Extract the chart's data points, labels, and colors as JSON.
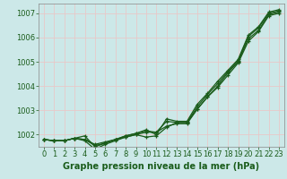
{
  "xlabel": "Graphe pression niveau de la mer (hPa)",
  "bg_color": "#cce8e8",
  "grid_color": "#e8c8c8",
  "line_color": "#1a5c1a",
  "xlim": [
    -0.5,
    23.5
  ],
  "ylim": [
    1001.5,
    1007.4
  ],
  "yticks": [
    1002,
    1003,
    1004,
    1005,
    1006,
    1007
  ],
  "xticks": [
    0,
    1,
    2,
    3,
    4,
    5,
    6,
    7,
    8,
    9,
    10,
    11,
    12,
    13,
    14,
    15,
    16,
    17,
    18,
    19,
    20,
    21,
    22,
    23
  ],
  "series": [
    [
      1001.8,
      1001.75,
      1001.75,
      1001.85,
      1001.8,
      1001.6,
      1001.7,
      1001.8,
      1001.9,
      1002.0,
      1002.1,
      1002.1,
      1002.35,
      1002.45,
      1002.45,
      1003.05,
      1003.55,
      1004.0,
      1004.55,
      1005.0,
      1005.95,
      1006.3,
      1006.95,
      1007.05
    ],
    [
      1001.8,
      1001.75,
      1001.75,
      1001.85,
      1001.8,
      1001.55,
      1001.65,
      1001.8,
      1001.95,
      1002.05,
      1002.15,
      1002.1,
      1002.55,
      1002.5,
      1002.5,
      1003.15,
      1003.65,
      1004.1,
      1004.6,
      1005.05,
      1006.05,
      1006.4,
      1007.0,
      1007.1
    ],
    [
      1001.8,
      1001.75,
      1001.75,
      1001.85,
      1001.95,
      1001.5,
      1001.65,
      1001.8,
      1001.95,
      1002.05,
      1002.2,
      1002.0,
      1002.65,
      1002.55,
      1002.55,
      1003.25,
      1003.7,
      1004.2,
      1004.65,
      1005.1,
      1006.1,
      1006.45,
      1007.05,
      1007.15
    ],
    [
      1001.8,
      1001.75,
      1001.75,
      1001.85,
      1001.75,
      1001.4,
      1001.6,
      1001.75,
      1001.9,
      1002.0,
      1001.9,
      1001.95,
      1002.3,
      1002.5,
      1002.5,
      1003.05,
      1003.55,
      1003.95,
      1004.45,
      1004.95,
      1005.85,
      1006.25,
      1006.9,
      1007.0
    ]
  ],
  "marker": "+",
  "markersize": 3.5,
  "linewidth": 0.9,
  "xlabel_fontsize": 7,
  "tick_fontsize": 6
}
